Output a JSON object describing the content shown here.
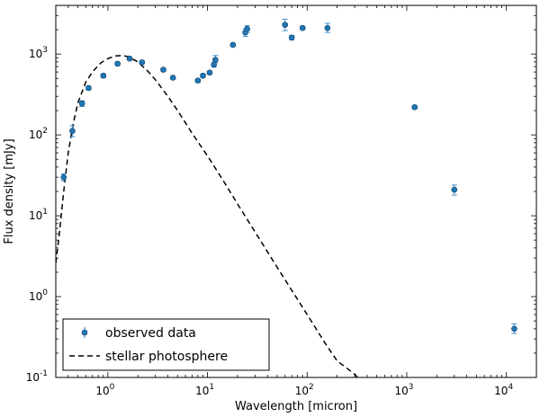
{
  "chart_data": {
    "type": "scatter",
    "title": "",
    "xlabel": "Wavelength [micron]",
    "ylabel": "Flux density [mJy]",
    "xscale": "log",
    "yscale": "log",
    "xlim": [
      0.3,
      20000
    ],
    "ylim": [
      0.1,
      4000
    ],
    "xticks": [
      {
        "value": 1,
        "base": "10",
        "exp": "0"
      },
      {
        "value": 10,
        "base": "10",
        "exp": "1"
      },
      {
        "value": 100,
        "base": "10",
        "exp": "2"
      },
      {
        "value": 1000,
        "base": "10",
        "exp": "3"
      },
      {
        "value": 10000,
        "base": "10",
        "exp": "4"
      }
    ],
    "yticks": [
      {
        "value": 0.1,
        "base": "10",
        "exp": "-1"
      },
      {
        "value": 1,
        "base": "10",
        "exp": "0"
      },
      {
        "value": 10,
        "base": "10",
        "exp": "1"
      },
      {
        "value": 100,
        "base": "10",
        "exp": "2"
      },
      {
        "value": 1000,
        "base": "10",
        "exp": "3"
      }
    ],
    "legend": {
      "position": "lower-left",
      "entries": [
        "observed data",
        "stellar photosphere"
      ]
    },
    "series": [
      {
        "name": "observed data",
        "kind": "points",
        "color": "#1f77b4",
        "points": [
          {
            "x": 0.36,
            "y": 30,
            "lo": 27,
            "hi": 33
          },
          {
            "x": 0.44,
            "y": 112,
            "lo": 95,
            "hi": 130
          },
          {
            "x": 0.55,
            "y": 245,
            "lo": 225,
            "hi": 265
          },
          {
            "x": 0.64,
            "y": 380,
            "lo": 360,
            "hi": 400
          },
          {
            "x": 0.9,
            "y": 540,
            "lo": 515,
            "hi": 565
          },
          {
            "x": 1.25,
            "y": 760,
            "lo": 730,
            "hi": 790
          },
          {
            "x": 1.65,
            "y": 880,
            "lo": 845,
            "hi": 915
          },
          {
            "x": 2.2,
            "y": 790,
            "lo": 760,
            "hi": 820
          },
          {
            "x": 3.6,
            "y": 640,
            "lo": 615,
            "hi": 665
          },
          {
            "x": 4.5,
            "y": 510,
            "lo": 490,
            "hi": 530
          },
          {
            "x": 8.0,
            "y": 470,
            "lo": 450,
            "hi": 490
          },
          {
            "x": 9.0,
            "y": 540,
            "lo": 515,
            "hi": 565
          },
          {
            "x": 10.5,
            "y": 590,
            "lo": 565,
            "hi": 615
          },
          {
            "x": 11.6,
            "y": 740,
            "lo": 690,
            "hi": 790
          },
          {
            "x": 12.0,
            "y": 850,
            "lo": 780,
            "hi": 960
          },
          {
            "x": 18.0,
            "y": 1300,
            "lo": 1250,
            "hi": 1350
          },
          {
            "x": 24.0,
            "y": 1850,
            "lo": 1650,
            "hi": 2050
          },
          {
            "x": 25.0,
            "y": 2050,
            "lo": 1850,
            "hi": 2250
          },
          {
            "x": 60.0,
            "y": 2300,
            "lo": 1950,
            "hi": 2700
          },
          {
            "x": 70.0,
            "y": 1600,
            "lo": 1500,
            "hi": 1700
          },
          {
            "x": 90.0,
            "y": 2100,
            "lo": 2000,
            "hi": 2200
          },
          {
            "x": 160.0,
            "y": 2100,
            "lo": 1850,
            "hi": 2400
          },
          {
            "x": 1200.0,
            "y": 220,
            "lo": 210,
            "hi": 230
          },
          {
            "x": 3000.0,
            "y": 21,
            "lo": 18,
            "hi": 24
          },
          {
            "x": 12000.0,
            "y": 0.4,
            "lo": 0.35,
            "hi": 0.46
          }
        ]
      },
      {
        "name": "stellar photosphere",
        "kind": "line",
        "style": "dashed",
        "color": "#000000",
        "x": [
          0.3,
          0.32,
          0.34,
          0.36,
          0.4,
          0.45,
          0.5,
          0.6,
          0.7,
          0.85,
          1.0,
          1.2,
          1.4,
          1.6,
          2.0,
          2.5,
          3.0,
          4.0,
          5.0,
          7.0,
          10.0,
          15.0,
          20.0,
          30.0,
          50.0,
          70.0,
          100.0,
          150.0,
          200.0,
          300.0,
          320.0
        ],
        "y": [
          2.6,
          5,
          10,
          20,
          60,
          140,
          250,
          450,
          600,
          780,
          880,
          950,
          960,
          930,
          800,
          620,
          480,
          300,
          200,
          105,
          55,
          25,
          14,
          6.3,
          2.3,
          1.2,
          0.6,
          0.27,
          0.16,
          0.11,
          0.1
        ]
      }
    ]
  }
}
